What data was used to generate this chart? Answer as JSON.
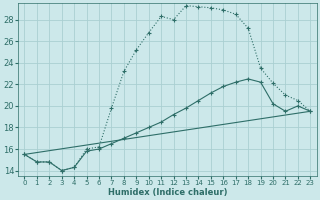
{
  "xlabel": "Humidex (Indice chaleur)",
  "bg_color": "#cce8ea",
  "grid_color": "#aacfd2",
  "line_color": "#2e6e68",
  "xlim": [
    -0.5,
    23.5
  ],
  "ylim": [
    13.5,
    29.5
  ],
  "xticks": [
    0,
    1,
    2,
    3,
    4,
    5,
    6,
    7,
    8,
    9,
    10,
    11,
    12,
    13,
    14,
    15,
    16,
    17,
    18,
    19,
    20,
    21,
    22,
    23
  ],
  "yticks": [
    14,
    16,
    18,
    20,
    22,
    24,
    26,
    28
  ],
  "series1_x": [
    0,
    1,
    2,
    3,
    4,
    5,
    6,
    7,
    8,
    9,
    10,
    11,
    12,
    13,
    14,
    15,
    16,
    17,
    18,
    19,
    20,
    21,
    22,
    23
  ],
  "series1_y": [
    15.5,
    14.8,
    14.8,
    14.0,
    14.3,
    16.0,
    16.2,
    19.8,
    23.2,
    25.2,
    26.8,
    28.3,
    28.0,
    29.3,
    29.2,
    29.1,
    28.9,
    28.5,
    27.2,
    23.5,
    22.1,
    21.0,
    20.5,
    19.5
  ],
  "series2_x": [
    0,
    1,
    2,
    3,
    4,
    5,
    6,
    7,
    8,
    9,
    10,
    11,
    12,
    13,
    14,
    15,
    16,
    17,
    18,
    19,
    20,
    21,
    22,
    23
  ],
  "series2_y": [
    15.5,
    14.8,
    14.8,
    14.0,
    14.3,
    15.8,
    16.0,
    16.5,
    17.0,
    17.5,
    18.0,
    18.5,
    19.2,
    19.8,
    20.5,
    21.2,
    21.8,
    22.2,
    22.5,
    22.2,
    20.2,
    19.5,
    20.0,
    19.5
  ],
  "series3_x": [
    0,
    23
  ],
  "series3_y": [
    15.5,
    19.5
  ]
}
